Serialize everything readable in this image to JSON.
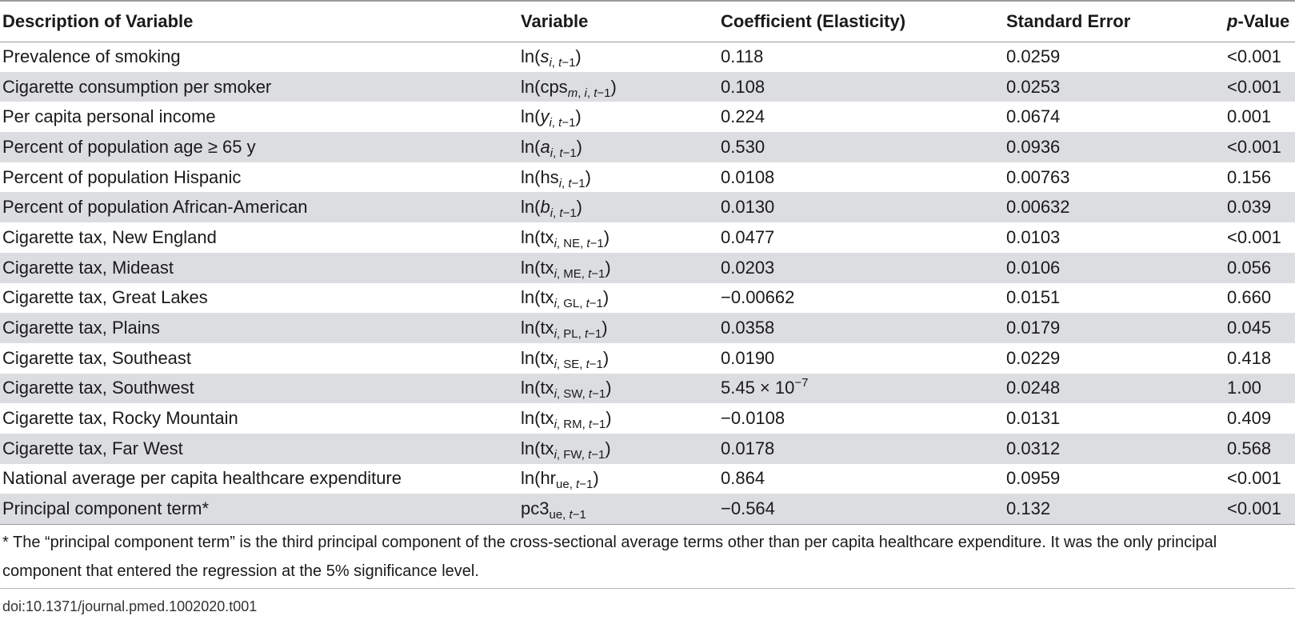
{
  "table": {
    "headers": {
      "description": "Description of Variable",
      "variable": "Variable",
      "coefficient": "Coefficient (Elasticity)",
      "se": "Standard Error",
      "p_italic": "p",
      "p_rest": "-Value"
    },
    "rows": [
      {
        "desc": "Prevalence of smoking",
        "var": {
          "base": "ln(",
          "main": "s",
          "sub": "i, t−1",
          "close": ")"
        },
        "coef": "0.118",
        "se": "0.0259",
        "p": "<0.001"
      },
      {
        "desc": "Cigarette consumption per smoker",
        "var": {
          "base": "ln(cps",
          "main": "",
          "sub": "m, i, t−1",
          "close": ")"
        },
        "coef": "0.108",
        "se": "0.0253",
        "p": "<0.001"
      },
      {
        "desc": "Per capita personal income",
        "var": {
          "base": "ln(",
          "main": "y",
          "sub": "i, t−1",
          "close": ")"
        },
        "coef": "0.224",
        "se": "0.0674",
        "p": "0.001"
      },
      {
        "desc": "Percent of population age ≥ 65 y",
        "var": {
          "base": "ln(",
          "main": "a",
          "sub": "i, t−1",
          "close": ")"
        },
        "coef": "0.530",
        "se": "0.0936",
        "p": "<0.001"
      },
      {
        "desc": "Percent of population Hispanic",
        "var": {
          "base": "ln(hs",
          "main": "",
          "sub": "i, t−1",
          "close": ")"
        },
        "coef": "0.0108",
        "se": "0.00763",
        "p": "0.156"
      },
      {
        "desc": "Percent of population African-American",
        "var": {
          "base": "ln(",
          "main": "b",
          "sub": "i, t−1",
          "close": ")"
        },
        "coef": "0.0130",
        "se": "0.00632",
        "p": "0.039"
      },
      {
        "desc": "Cigarette tax, New England",
        "var": {
          "base": "ln(tx",
          "main": "",
          "sub": "i, NE, t−1",
          "close": ")"
        },
        "coef": "0.0477",
        "se": "0.0103",
        "p": "<0.001"
      },
      {
        "desc": "Cigarette tax, Mideast",
        "var": {
          "base": "ln(tx",
          "main": "",
          "sub": "i, ME, t−1",
          "close": ")"
        },
        "coef": "0.0203",
        "se": "0.0106",
        "p": "0.056"
      },
      {
        "desc": "Cigarette tax, Great Lakes",
        "var": {
          "base": "ln(tx",
          "main": "",
          "sub": "i, GL, t−1",
          "close": ")"
        },
        "coef": "−0.00662",
        "se": "0.0151",
        "p": "0.660"
      },
      {
        "desc": "Cigarette tax, Plains",
        "var": {
          "base": "ln(tx",
          "main": "",
          "sub": "i, PL, t−1",
          "close": ")"
        },
        "coef": "0.0358",
        "se": "0.0179",
        "p": "0.045"
      },
      {
        "desc": "Cigarette tax, Southeast",
        "var": {
          "base": "ln(tx",
          "main": "",
          "sub": "i, SE, t−1",
          "close": ")"
        },
        "coef": "0.0190",
        "se": "0.0229",
        "p": "0.418"
      },
      {
        "desc": "Cigarette tax, Southwest",
        "var": {
          "base": "ln(tx",
          "main": "",
          "sub": "i, SW, t−1",
          "close": ")"
        },
        "coef": "5.45 × 10",
        "coef_sup": "−7",
        "se": "0.0248",
        "p": "1.00"
      },
      {
        "desc": "Cigarette tax, Rocky Mountain",
        "var": {
          "base": "ln(tx",
          "main": "",
          "sub": "i, RM, t−1",
          "close": ")"
        },
        "coef": "−0.0108",
        "se": "0.0131",
        "p": "0.409"
      },
      {
        "desc": "Cigarette tax, Far West",
        "var": {
          "base": "ln(tx",
          "main": "",
          "sub": "i, FW, t−1",
          "close": ")"
        },
        "coef": "0.0178",
        "se": "0.0312",
        "p": "0.568"
      },
      {
        "desc": "National average per capita healthcare expenditure",
        "var": {
          "base": "ln(hr",
          "main": "",
          "sub": "ue, t−1",
          "close": ")"
        },
        "coef": "0.864",
        "se": "0.0959",
        "p": "<0.001"
      },
      {
        "desc": "Principal component term*",
        "var": {
          "base": "pc3",
          "main": "",
          "sub": "ue, t−1",
          "close": ""
        },
        "coef": "−0.564",
        "se": "0.132",
        "p": "<0.001"
      }
    ]
  },
  "footnote": "* The “principal component term” is the third principal component of the cross-sectional average terms other than per capita healthcare expenditure. It was the only principal component that entered the regression at the 5% significance level.",
  "doi": "doi:10.1371/journal.pmed.1002020.t001"
}
